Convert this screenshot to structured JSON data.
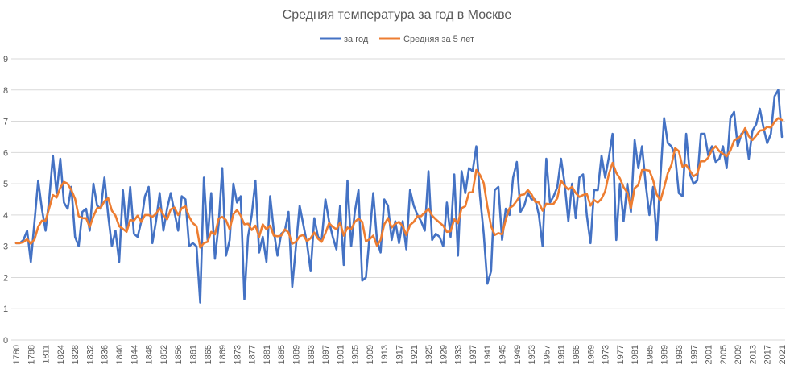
{
  "chart_data": {
    "type": "line",
    "title": "Средняя температура за год в Москве",
    "xlabel": "",
    "ylabel": "",
    "ylim": [
      0,
      9
    ],
    "yticks": [
      0,
      1,
      2,
      3,
      4,
      5,
      6,
      7,
      8,
      9
    ],
    "grid": true,
    "legend_position": "top",
    "label_every": 4,
    "colors": {
      "annual": "#4472C4",
      "moving_avg": "#ED7D31",
      "grid": "#D9D9D9",
      "text": "#595959"
    },
    "categories": [
      1780,
      1781,
      1782,
      1783,
      1788,
      1789,
      1790,
      1791,
      1811,
      1812,
      1813,
      1814,
      1824,
      1825,
      1826,
      1827,
      1828,
      1829,
      1830,
      1831,
      1832,
      1833,
      1834,
      1835,
      1836,
      1837,
      1838,
      1839,
      1840,
      1841,
      1842,
      1843,
      1844,
      1845,
      1846,
      1847,
      1848,
      1849,
      1850,
      1851,
      1852,
      1853,
      1854,
      1855,
      1856,
      1857,
      1859,
      1860,
      1861,
      1862,
      1863,
      1864,
      1865,
      1866,
      1867,
      1868,
      1869,
      1870,
      1871,
      1872,
      1873,
      1874,
      1875,
      1876,
      1877,
      1878,
      1879,
      1880,
      1881,
      1882,
      1883,
      1884,
      1885,
      1886,
      1887,
      1888,
      1889,
      1890,
      1891,
      1892,
      1893,
      1894,
      1895,
      1896,
      1897,
      1898,
      1899,
      1900,
      1901,
      1902,
      1903,
      1904,
      1905,
      1906,
      1907,
      1908,
      1909,
      1910,
      1911,
      1912,
      1913,
      1914,
      1915,
      1916,
      1917,
      1918,
      1919,
      1920,
      1921,
      1922,
      1923,
      1924,
      1925,
      1926,
      1927,
      1928,
      1929,
      1930,
      1931,
      1932,
      1933,
      1934,
      1935,
      1936,
      1937,
      1938,
      1939,
      1940,
      1941,
      1942,
      1943,
      1944,
      1945,
      1946,
      1947,
      1948,
      1949,
      1950,
      1951,
      1952,
      1953,
      1954,
      1955,
      1956,
      1957,
      1958,
      1959,
      1960,
      1961,
      1962,
      1963,
      1964,
      1965,
      1966,
      1967,
      1968,
      1969,
      1970,
      1971,
      1972,
      1973,
      1974,
      1975,
      1976,
      1977,
      1978,
      1979,
      1980,
      1981,
      1982,
      1983,
      1984,
      1985,
      1986,
      1987,
      1988,
      1989,
      1990,
      1991,
      1992,
      1993,
      1994,
      1995,
      1996,
      1997,
      1998,
      1999,
      2000,
      2001,
      2002,
      2003,
      2004,
      2005,
      2006,
      2007,
      2008,
      2009,
      2010,
      2011,
      2012,
      2013,
      2014,
      2015,
      2016,
      2017,
      2018,
      2019,
      2020,
      2021
    ],
    "series": [
      {
        "name": "за год",
        "values": [
          3.1,
          3.1,
          3.2,
          3.5,
          2.5,
          3.8,
          5.1,
          4.2,
          3.5,
          4.5,
          5.9,
          4.7,
          5.8,
          4.4,
          4.2,
          4.9,
          3.3,
          3.0,
          4.1,
          4.2,
          3.5,
          5.0,
          4.3,
          4.2,
          5.2,
          4.0,
          3.0,
          3.5,
          2.5,
          4.8,
          3.5,
          4.9,
          3.4,
          3.3,
          3.8,
          4.6,
          4.9,
          3.1,
          3.8,
          4.7,
          3.5,
          4.2,
          4.7,
          4.1,
          3.5,
          4.6,
          4.5,
          3.0,
          3.1,
          3.0,
          1.2,
          5.2,
          3.2,
          4.7,
          2.6,
          3.7,
          5.5,
          2.7,
          3.2,
          5.0,
          4.4,
          4.6,
          1.3,
          3.3,
          4.0,
          5.1,
          2.8,
          3.3,
          2.5,
          4.6,
          3.5,
          2.7,
          3.4,
          3.5,
          4.1,
          1.7,
          3.0,
          4.3,
          3.7,
          3.1,
          2.2,
          3.9,
          3.3,
          3.2,
          4.5,
          3.8,
          3.3,
          2.9,
          4.3,
          2.4,
          5.1,
          3.0,
          4.1,
          4.8,
          1.9,
          2.0,
          3.3,
          4.7,
          3.2,
          2.8,
          4.5,
          4.3,
          3.2,
          3.8,
          3.1,
          3.8,
          2.9,
          4.8,
          4.3,
          4.0,
          3.8,
          3.5,
          5.4,
          3.2,
          3.4,
          3.3,
          3.0,
          4.4,
          3.3,
          5.3,
          2.7,
          5.4,
          4.7,
          5.5,
          5.4,
          6.2,
          4.6,
          3.4,
          1.8,
          2.2,
          4.8,
          4.9,
          3.2,
          4.2,
          4.0,
          5.2,
          5.7,
          4.1,
          4.3,
          4.7,
          4.5,
          4.5,
          4.0,
          3.0,
          5.8,
          4.4,
          4.6,
          4.9,
          5.8,
          5.0,
          3.8,
          5.0,
          3.9,
          5.2,
          5.3,
          4.0,
          3.1,
          4.8,
          4.8,
          5.9,
          5.2,
          5.85,
          6.6,
          3.2,
          5.0,
          3.8,
          5.0,
          4.1,
          6.4,
          5.5,
          6.2,
          5.0,
          4.0,
          4.9,
          3.2,
          5.2,
          7.1,
          6.3,
          6.2,
          5.9,
          4.7,
          4.6,
          6.6,
          5.3,
          5.0,
          5.1,
          6.6,
          6.6,
          5.9,
          6.2,
          5.7,
          5.8,
          6.2,
          5.5,
          7.1,
          7.3,
          6.2,
          6.6,
          6.7,
          5.8,
          6.7,
          6.9,
          7.4,
          6.8,
          6.3,
          6.6,
          7.8,
          8.0,
          6.5
        ]
      },
      {
        "name": "Средняя за 5 лет",
        "moving_average_of": "за год",
        "window": 5
      }
    ]
  }
}
